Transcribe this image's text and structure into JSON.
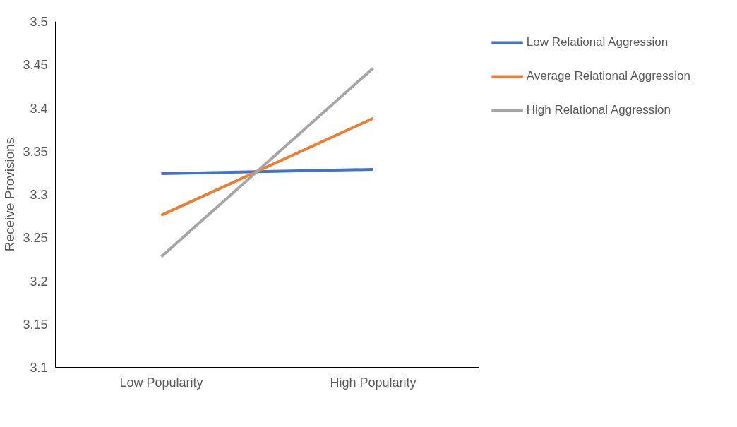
{
  "chart_data": {
    "type": "line",
    "ylabel": "Receive Provisions",
    "categories": [
      "Low Popularity",
      "High Popularity"
    ],
    "series": [
      {
        "name": "Low Relational Aggression",
        "color": "#4472c4",
        "values": [
          3.324,
          3.329
        ]
      },
      {
        "name": "Average Relational Aggression",
        "color": "#ed7d31",
        "values": [
          3.276,
          3.388
        ]
      },
      {
        "name": "High Relational Aggression",
        "color": "#a5a5a5",
        "values": [
          3.228,
          3.446
        ]
      }
    ],
    "ylim": [
      3.1,
      3.5
    ],
    "yticks": [
      3.1,
      3.15,
      3.2,
      3.25,
      3.3,
      3.35,
      3.4,
      3.45,
      3.5
    ],
    "grid": false,
    "legend": "right",
    "marker": "none",
    "line_style": "solid"
  }
}
